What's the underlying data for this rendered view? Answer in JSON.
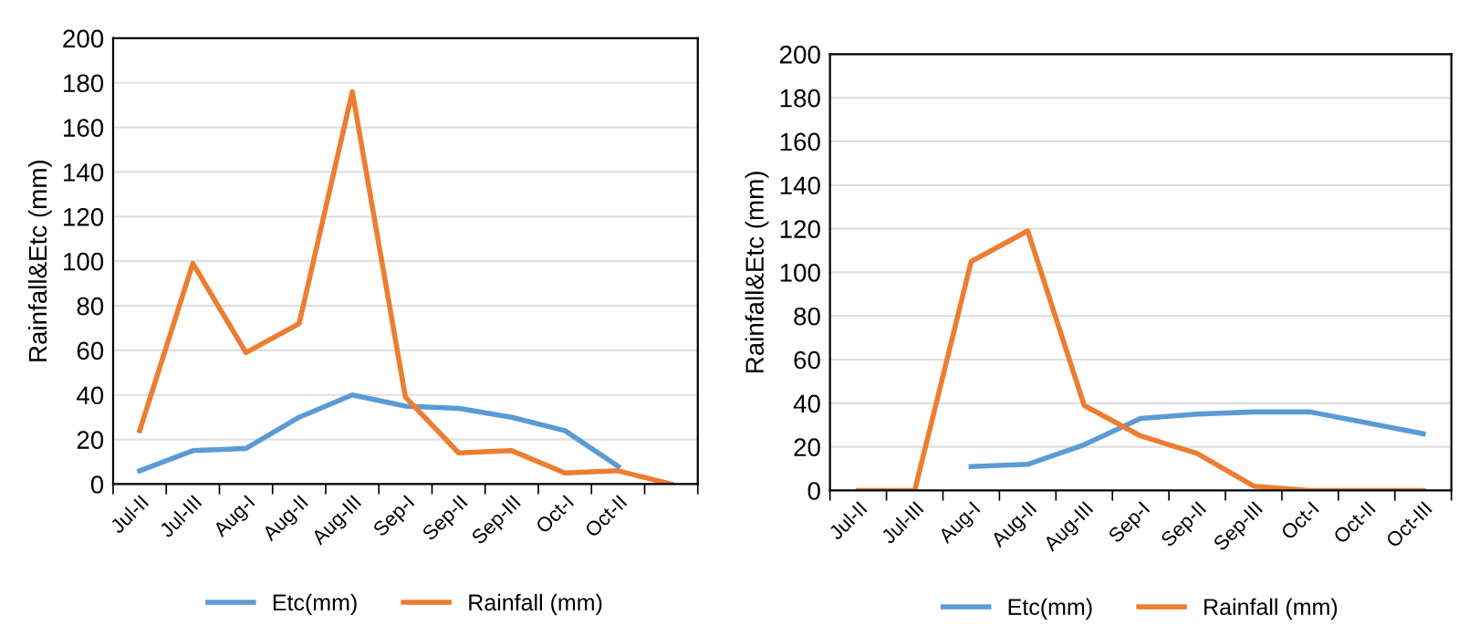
{
  "chart_data": [
    {
      "type": "line",
      "ylabel": "Rainfall&Etc (mm)",
      "categories": [
        "Jul-II",
        "Jul-III",
        "Aug-I",
        "Aug-II",
        "Aug-III",
        "Sep-I",
        "Sep-II",
        "Sep-III",
        "Oct-I",
        "Oct-II",
        null
      ],
      "series": [
        {
          "name": "Etc(mm)",
          "color": "#5b9bd5",
          "values": [
            6,
            15,
            16,
            30,
            40,
            35,
            34,
            30,
            24,
            8,
            null
          ]
        },
        {
          "name": "Rainfall (mm)",
          "color": "#ed7d31",
          "values": [
            24,
            99,
            59,
            72,
            176,
            39,
            14,
            15,
            5,
            6,
            0
          ]
        }
      ],
      "ylim": [
        0,
        200
      ],
      "yticks": [
        0,
        20,
        40,
        60,
        80,
        100,
        120,
        140,
        160,
        180,
        200
      ],
      "grid": "y",
      "legend": "bottom",
      "marker": "none",
      "line_style": "solid"
    },
    {
      "type": "line",
      "ylabel": "Rainfall&Etc (mm)",
      "categories": [
        "Jul-II",
        "Jul-III",
        "Aug-I",
        "Aug-II",
        "Aug-III",
        "Sep-I",
        "Sep-II",
        "Sep-III",
        "Oct-I",
        "Oct-II",
        "Oct-III"
      ],
      "series": [
        {
          "name": "Etc(mm)",
          "color": "#5b9bd5",
          "values": [
            null,
            null,
            11,
            12,
            21,
            33,
            35,
            36,
            36,
            31,
            26
          ]
        },
        {
          "name": "Rainfall (mm)",
          "color": "#ed7d31",
          "values": [
            0,
            0,
            105,
            119,
            39,
            25,
            17,
            2,
            0,
            0,
            0
          ]
        }
      ],
      "ylim": [
        0,
        200
      ],
      "yticks": [
        0,
        20,
        40,
        60,
        80,
        100,
        120,
        140,
        160,
        180,
        200
      ],
      "grid": "y",
      "legend": "bottom",
      "marker": "none",
      "line_style": "solid"
    }
  ]
}
